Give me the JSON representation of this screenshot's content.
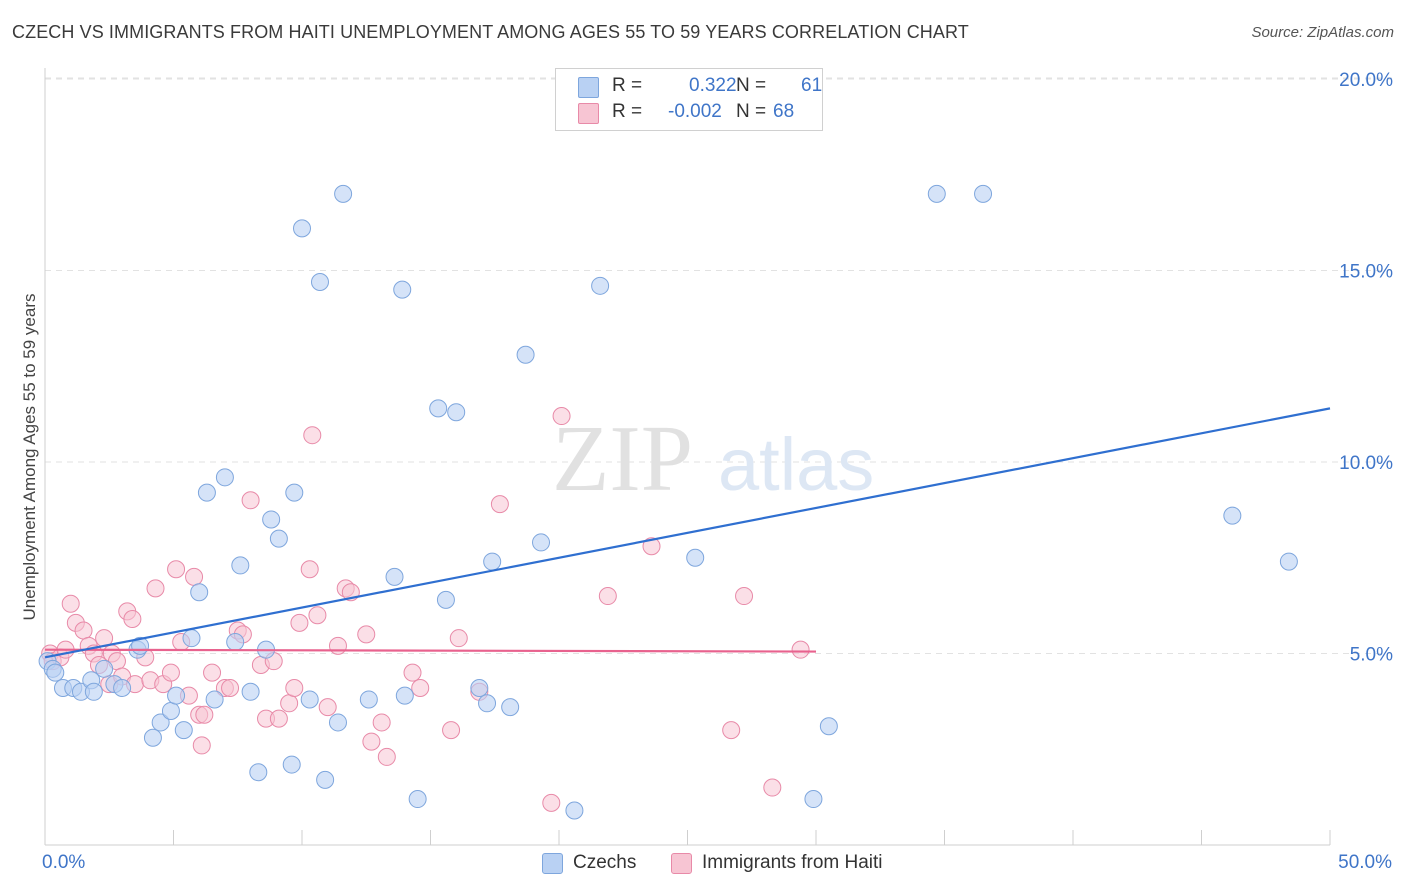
{
  "header": {
    "title": "CZECH VS IMMIGRANTS FROM HAITI UNEMPLOYMENT AMONG AGES 55 TO 59 YEARS CORRELATION CHART",
    "source": "Source: ZipAtlas.com"
  },
  "watermark": {
    "zip": "ZIP",
    "atlas": "atlas"
  },
  "legend_stats": {
    "czechs": {
      "r_label": "R =",
      "r_value": "0.322",
      "n_label": "N =",
      "n_value": "61"
    },
    "haiti": {
      "r_label": "R =",
      "r_value": "-0.002",
      "n_label": "N =",
      "n_value": "68"
    }
  },
  "colors": {
    "czechs_fill": "#b9d1f3",
    "czechs_stroke": "#7ea6dd",
    "czechs_line": "#2f6fd0",
    "haiti_fill": "#f7c5d3",
    "haiti_stroke": "#e88aa8",
    "haiti_line": "#e8628e",
    "tick_text": "#3f75c8",
    "grid": "#e2e2e2"
  },
  "chart_data": {
    "type": "scatter",
    "title": "CZECH VS IMMIGRANTS FROM HAITI UNEMPLOYMENT AMONG AGES 55 TO 59 YEARS CORRELATION CHART",
    "xlabel": "",
    "ylabel": "Unemployment Among Ages 55 to 59 years",
    "xlim": [
      0,
      50
    ],
    "ylim": [
      0,
      21
    ],
    "x_tick_labels": [
      "0.0%",
      "50.0%"
    ],
    "y_ticks": [
      5,
      10,
      15,
      20
    ],
    "y_tick_labels": [
      "5.0%",
      "10.0%",
      "15.0%",
      "20.0%"
    ],
    "series": [
      {
        "name": "Czechs",
        "points": [
          [
            0.1,
            4.8
          ],
          [
            0.3,
            4.6
          ],
          [
            0.4,
            4.5
          ],
          [
            0.7,
            4.1
          ],
          [
            1.1,
            4.1
          ],
          [
            1.4,
            4.0
          ],
          [
            1.8,
            4.3
          ],
          [
            1.9,
            4.0
          ],
          [
            2.3,
            4.6
          ],
          [
            2.7,
            4.2
          ],
          [
            3.0,
            4.1
          ],
          [
            3.6,
            5.1
          ],
          [
            3.7,
            5.2
          ],
          [
            4.2,
            2.8
          ],
          [
            4.5,
            3.2
          ],
          [
            4.9,
            3.5
          ],
          [
            5.1,
            3.9
          ],
          [
            5.4,
            3.0
          ],
          [
            5.7,
            5.4
          ],
          [
            6.0,
            6.6
          ],
          [
            6.3,
            9.2
          ],
          [
            6.6,
            3.8
          ],
          [
            7.0,
            9.6
          ],
          [
            7.4,
            5.3
          ],
          [
            7.6,
            7.3
          ],
          [
            8.0,
            4.0
          ],
          [
            8.3,
            1.9
          ],
          [
            8.6,
            5.1
          ],
          [
            8.8,
            8.5
          ],
          [
            9.1,
            8.0
          ],
          [
            9.6,
            2.1
          ],
          [
            9.7,
            9.2
          ],
          [
            10.0,
            16.1
          ],
          [
            10.3,
            3.8
          ],
          [
            10.7,
            14.7
          ],
          [
            10.9,
            1.7
          ],
          [
            11.4,
            3.2
          ],
          [
            11.6,
            17.0
          ],
          [
            12.6,
            3.8
          ],
          [
            13.6,
            7.0
          ],
          [
            13.9,
            14.5
          ],
          [
            14.0,
            3.9
          ],
          [
            14.5,
            1.2
          ],
          [
            15.3,
            11.4
          ],
          [
            15.6,
            6.4
          ],
          [
            16.0,
            11.3
          ],
          [
            16.9,
            4.1
          ],
          [
            17.2,
            3.7
          ],
          [
            17.4,
            7.4
          ],
          [
            18.1,
            3.6
          ],
          [
            18.7,
            12.8
          ],
          [
            19.3,
            7.9
          ],
          [
            20.6,
            0.9
          ],
          [
            21.6,
            14.6
          ],
          [
            25.3,
            7.5
          ],
          [
            29.9,
            1.2
          ],
          [
            30.5,
            3.1
          ],
          [
            34.7,
            17.0
          ],
          [
            36.5,
            17.0
          ],
          [
            46.2,
            8.6
          ],
          [
            48.4,
            7.4
          ]
        ]
      },
      {
        "name": "Immigrants from Haiti",
        "points": [
          [
            0.2,
            5.0
          ],
          [
            0.3,
            4.8
          ],
          [
            0.6,
            4.9
          ],
          [
            0.8,
            5.1
          ],
          [
            1.0,
            6.3
          ],
          [
            1.2,
            5.8
          ],
          [
            1.5,
            5.6
          ],
          [
            1.7,
            5.2
          ],
          [
            1.9,
            5.0
          ],
          [
            2.1,
            4.7
          ],
          [
            2.3,
            5.4
          ],
          [
            2.5,
            4.2
          ],
          [
            2.6,
            5.0
          ],
          [
            2.8,
            4.8
          ],
          [
            3.0,
            4.4
          ],
          [
            3.2,
            6.1
          ],
          [
            3.4,
            5.9
          ],
          [
            3.5,
            4.2
          ],
          [
            3.9,
            4.9
          ],
          [
            4.1,
            4.3
          ],
          [
            4.3,
            6.7
          ],
          [
            4.6,
            4.2
          ],
          [
            4.9,
            4.5
          ],
          [
            5.1,
            7.2
          ],
          [
            5.3,
            5.3
          ],
          [
            5.6,
            3.9
          ],
          [
            5.8,
            7.0
          ],
          [
            6.0,
            3.4
          ],
          [
            6.1,
            2.6
          ],
          [
            6.2,
            3.4
          ],
          [
            6.5,
            4.5
          ],
          [
            7.0,
            4.1
          ],
          [
            7.2,
            4.1
          ],
          [
            7.5,
            5.6
          ],
          [
            7.7,
            5.5
          ],
          [
            8.0,
            9.0
          ],
          [
            8.4,
            4.7
          ],
          [
            8.6,
            3.3
          ],
          [
            8.9,
            4.8
          ],
          [
            9.1,
            3.3
          ],
          [
            9.5,
            3.7
          ],
          [
            9.7,
            4.1
          ],
          [
            9.9,
            5.8
          ],
          [
            10.3,
            7.2
          ],
          [
            10.4,
            10.7
          ],
          [
            10.6,
            6.0
          ],
          [
            11.0,
            3.6
          ],
          [
            11.4,
            5.2
          ],
          [
            11.7,
            6.7
          ],
          [
            11.9,
            6.6
          ],
          [
            12.5,
            5.5
          ],
          [
            12.7,
            2.7
          ],
          [
            13.1,
            3.2
          ],
          [
            13.3,
            2.3
          ],
          [
            14.3,
            4.5
          ],
          [
            14.6,
            4.1
          ],
          [
            15.8,
            3.0
          ],
          [
            16.1,
            5.4
          ],
          [
            16.9,
            4.0
          ],
          [
            17.7,
            8.9
          ],
          [
            19.7,
            1.1
          ],
          [
            20.1,
            11.2
          ],
          [
            21.9,
            6.5
          ],
          [
            23.6,
            7.8
          ],
          [
            26.7,
            3.0
          ],
          [
            27.2,
            6.5
          ],
          [
            28.3,
            1.5
          ],
          [
            29.4,
            5.1
          ]
        ]
      }
    ],
    "trend_lines": [
      {
        "name": "Czechs",
        "x": [
          0,
          50
        ],
        "y": [
          4.9,
          11.4
        ]
      },
      {
        "name": "Immigrants from Haiti",
        "x": [
          0,
          30
        ],
        "y": [
          5.1,
          5.05
        ]
      }
    ]
  },
  "bottom_legend": {
    "czechs": "Czechs",
    "haiti": "Immigrants from Haiti"
  }
}
